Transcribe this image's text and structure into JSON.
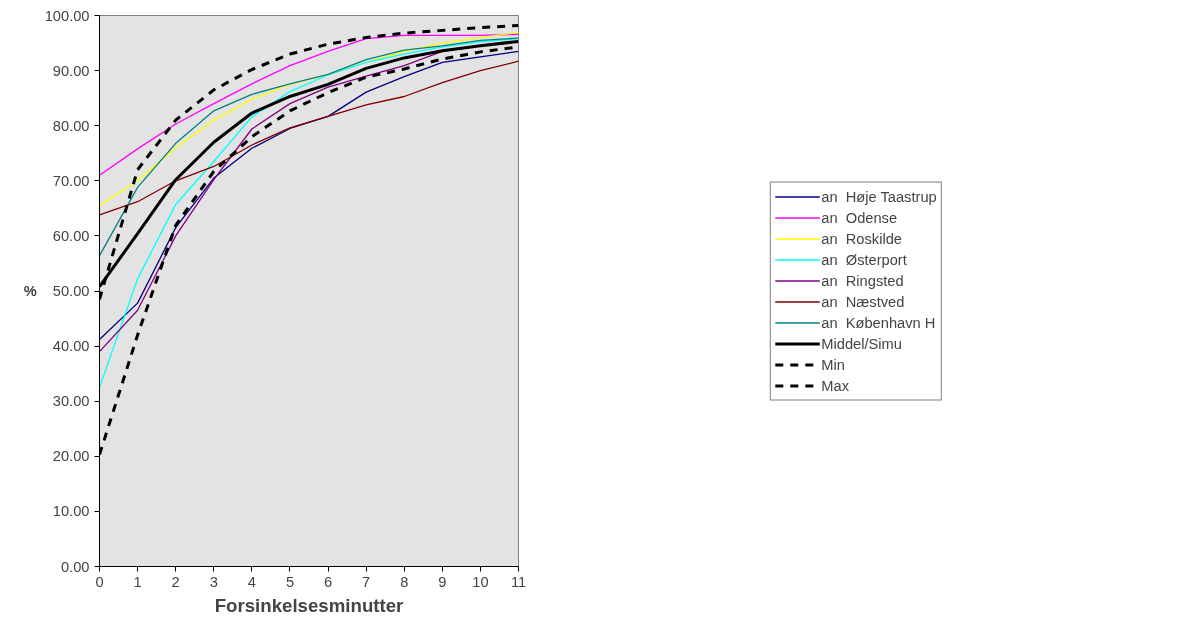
{
  "chart_data": {
    "type": "line",
    "xlabel": "Forsinkelsesminutter",
    "ylabel": "%",
    "x": [
      0,
      1,
      2,
      3,
      4,
      5,
      6,
      7,
      8,
      9,
      10,
      11
    ],
    "xlim": [
      0,
      11
    ],
    "xticks": [
      0,
      1,
      2,
      3,
      4,
      5,
      6,
      7,
      8,
      9,
      10,
      11
    ],
    "ylim": [
      0,
      100
    ],
    "yticks": [
      {
        "value": 0,
        "label": "0.00"
      },
      {
        "value": 10,
        "label": "10.00"
      },
      {
        "value": 20,
        "label": "20.00"
      },
      {
        "value": 30,
        "label": "30.00"
      },
      {
        "value": 40,
        "label": "40.00"
      },
      {
        "value": 50,
        "label": "50.00"
      },
      {
        "value": 60,
        "label": "60.00"
      },
      {
        "value": 70,
        "label": "70.00"
      },
      {
        "value": 80,
        "label": "80.00"
      },
      {
        "value": 90,
        "label": "90.00"
      },
      {
        "value": 100,
        "label": "100.00"
      }
    ],
    "grid": false,
    "legend": "right",
    "marker": "none",
    "series": [
      {
        "name": "an  Høje Taastrup",
        "color": "#000080",
        "line_style": "solid",
        "values": [
          41.2,
          47.8,
          61.5,
          70.5,
          75.9,
          79.5,
          81.7,
          86.1,
          88.9,
          91.5,
          92.5,
          93.5
        ]
      },
      {
        "name": "an  Odense",
        "color": "#ff00ff",
        "line_style": "solid",
        "values": [
          71.0,
          75.8,
          80.3,
          84.0,
          87.6,
          90.9,
          93.5,
          95.8,
          96.4,
          96.4,
          96.4,
          96.6
        ]
      },
      {
        "name": "an  Roskilde",
        "color": "#ffff00",
        "line_style": "solid",
        "values": [
          65.5,
          70.0,
          76.0,
          81.0,
          84.8,
          87.5,
          89.3,
          91.5,
          93.5,
          95.0,
          96.0,
          96.9
        ]
      },
      {
        "name": "an  Østerport",
        "color": "#00ffff",
        "line_style": "solid",
        "values": [
          32.5,
          52.2,
          65.7,
          73.5,
          81.6,
          86.2,
          89.2,
          91.5,
          93.0,
          94.3,
          95.2,
          95.8
        ]
      },
      {
        "name": "an  Ringsted",
        "color": "#800080",
        "line_style": "solid",
        "values": [
          39.0,
          46.5,
          60.0,
          70.2,
          79.4,
          84.0,
          87.0,
          89.0,
          90.9,
          93.5,
          94.5,
          95.2
        ]
      },
      {
        "name": "an  Næstved",
        "color": "#800000",
        "line_style": "solid",
        "values": [
          63.8,
          66.2,
          70.0,
          72.6,
          76.5,
          79.6,
          81.7,
          83.8,
          85.3,
          87.8,
          90.0,
          91.7
        ]
      },
      {
        "name": "an  København H",
        "color": "#008080",
        "line_style": "solid",
        "values": [
          56.4,
          68.8,
          76.8,
          82.7,
          85.7,
          87.6,
          89.3,
          92.0,
          93.7,
          94.5,
          95.5,
          95.9
        ]
      },
      {
        "name": "Middel/Simu",
        "color": "#000000",
        "line_style": "solid",
        "values": [
          50.8,
          60.4,
          70.2,
          77.0,
          82.3,
          85.3,
          87.5,
          90.4,
          92.3,
          93.6,
          94.5,
          95.3
        ]
      },
      {
        "name": "Min",
        "color": "#000000",
        "line_style": "dashed",
        "values": [
          20.3,
          42.0,
          61.9,
          71.7,
          78.0,
          82.7,
          86.0,
          88.8,
          90.3,
          92.1,
          93.4,
          94.3
        ]
      },
      {
        "name": "Max",
        "color": "#000000",
        "line_style": "dashed",
        "values": [
          48.5,
          72.0,
          81.0,
          86.5,
          90.2,
          93.0,
          94.8,
          96.0,
          96.8,
          97.3,
          97.8,
          98.2
        ]
      }
    ]
  }
}
